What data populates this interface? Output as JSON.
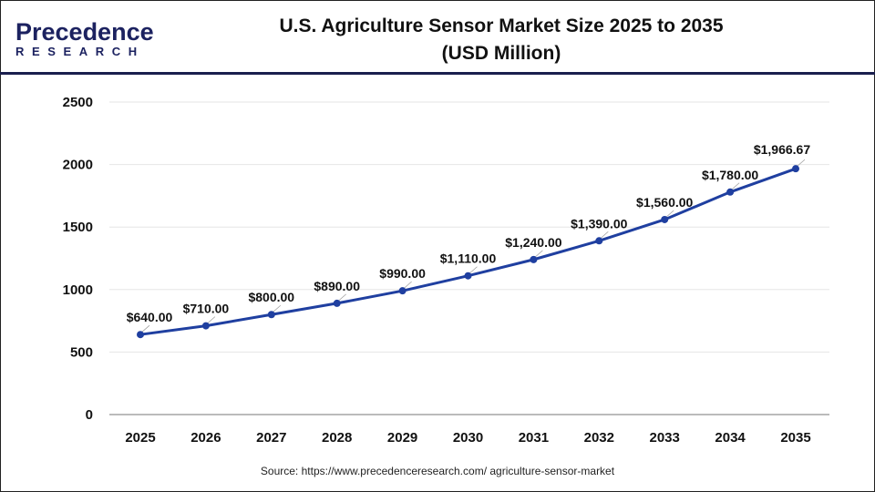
{
  "logo": {
    "text_main": "Precedence",
    "text_sub": "RESEARCH"
  },
  "source": "Source: https://www.precedenceresearch.com/ agriculture-sensor-market",
  "colors": {
    "line": "#1f3fa0",
    "header_rule": "#1a1f4e",
    "grid": "#e6e6e6"
  },
  "chart_data": {
    "type": "line",
    "title": "U.S. Agriculture Sensor Market Size 2025 to 2035",
    "subtitle": "(USD Million)",
    "xlabel": "",
    "ylabel": "",
    "categories": [
      "2025",
      "2026",
      "2027",
      "2028",
      "2029",
      "2030",
      "2031",
      "2032",
      "2033",
      "2034",
      "2035"
    ],
    "values": [
      640,
      710,
      800,
      890,
      990,
      1110,
      1240,
      1390,
      1560,
      1780,
      1966.67
    ],
    "labels": [
      "$640.00",
      "$710.00",
      "$800.00",
      "$890.00",
      "$990.00",
      "$1,110.00",
      "$1,240.00",
      "$1,390.00",
      "$1,560.00",
      "$1,780.00",
      "$1,966.67"
    ],
    "yticks": [
      0,
      500,
      1000,
      1500,
      2000,
      2500
    ],
    "ylim": [
      0,
      2500
    ],
    "grid": true,
    "legend": "none"
  }
}
